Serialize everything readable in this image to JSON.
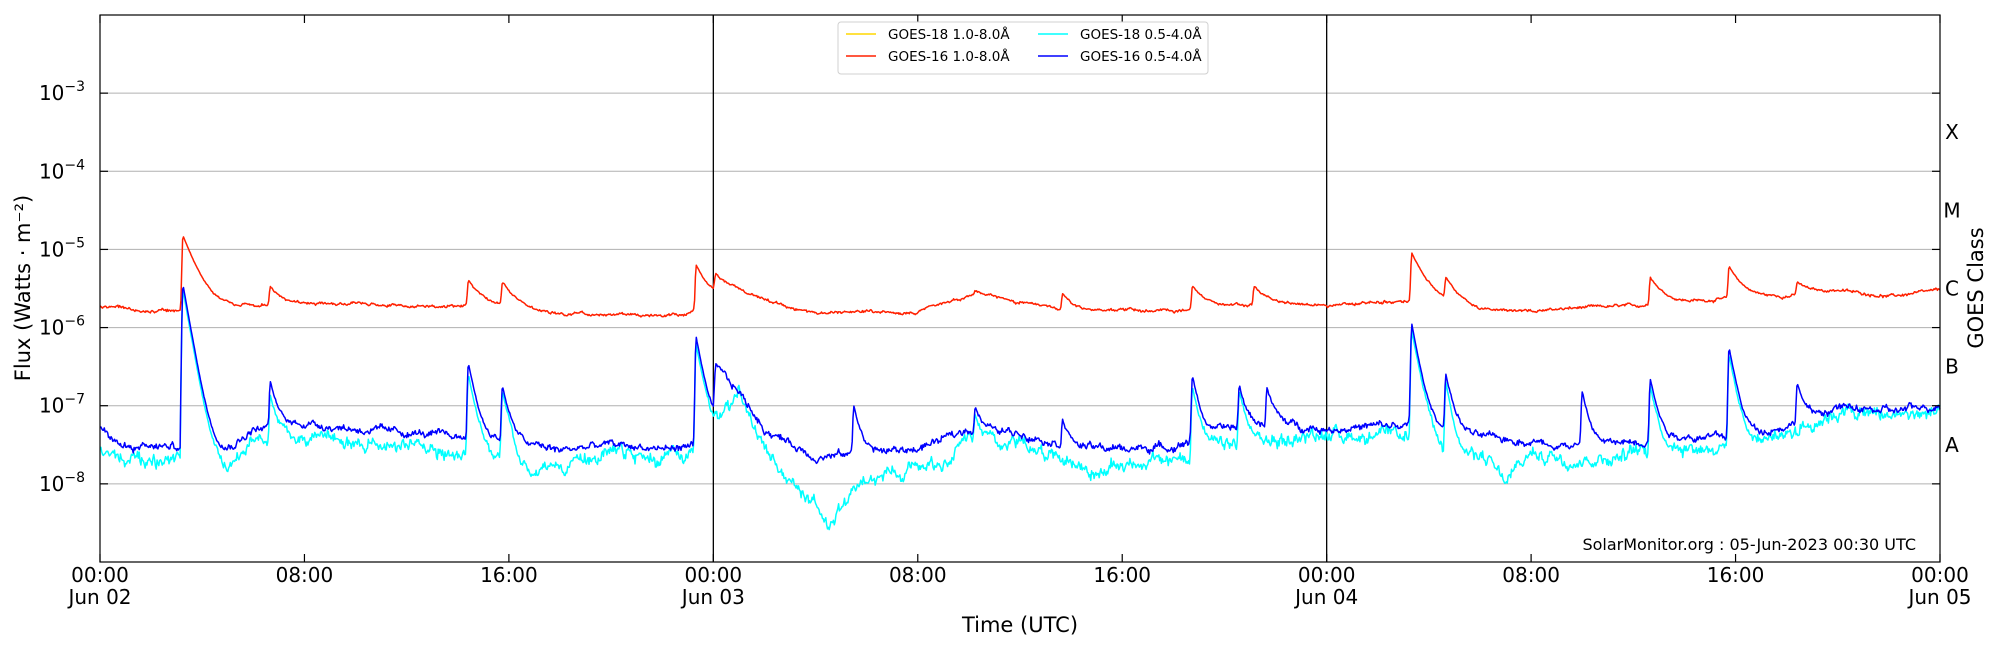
{
  "chart_data": {
    "type": "line",
    "title": "",
    "xlabel": "Time (UTC)",
    "ylabel": "Flux (Watts · m⁻²)",
    "y2label": "GOES Class",
    "yscale": "log",
    "ylim": [
      1e-09,
      0.01
    ],
    "xlim": [
      "2023-06-02T00:00",
      "2023-06-05T00:00"
    ],
    "x_ticks": [
      {
        "at": "2023-06-02T00:00",
        "line1": "00:00",
        "line2": "Jun 02"
      },
      {
        "at": "2023-06-02T08:00",
        "line1": "08:00",
        "line2": ""
      },
      {
        "at": "2023-06-02T16:00",
        "line1": "16:00",
        "line2": ""
      },
      {
        "at": "2023-06-03T00:00",
        "line1": "00:00",
        "line2": "Jun 03"
      },
      {
        "at": "2023-06-03T08:00",
        "line1": "08:00",
        "line2": ""
      },
      {
        "at": "2023-06-03T16:00",
        "line1": "16:00",
        "line2": ""
      },
      {
        "at": "2023-06-04T00:00",
        "line1": "00:00",
        "line2": "Jun 04"
      },
      {
        "at": "2023-06-04T08:00",
        "line1": "08:00",
        "line2": ""
      },
      {
        "at": "2023-06-04T16:00",
        "line1": "16:00",
        "line2": ""
      },
      {
        "at": "2023-06-05T00:00",
        "line1": "00:00",
        "line2": "Jun 05"
      }
    ],
    "y_ticks": [
      {
        "value": 1e-08,
        "mantissa": "10",
        "exponent": "−8"
      },
      {
        "value": 1e-07,
        "mantissa": "10",
        "exponent": "−7"
      },
      {
        "value": 1e-06,
        "mantissa": "10",
        "exponent": "−6"
      },
      {
        "value": 1e-05,
        "mantissa": "10",
        "exponent": "−5"
      },
      {
        "value": 0.0001,
        "mantissa": "10",
        "exponent": "−4"
      },
      {
        "value": 0.001,
        "mantissa": "10",
        "exponent": "−3"
      }
    ],
    "class_labels": [
      {
        "label": "A",
        "low": 1e-08,
        "high": 1e-07
      },
      {
        "label": "B",
        "low": 1e-07,
        "high": 1e-06
      },
      {
        "label": "C",
        "low": 1e-06,
        "high": 1e-05
      },
      {
        "label": "M",
        "low": 1e-05,
        "high": 0.0001
      },
      {
        "label": "X",
        "low": 0.0001,
        "high": 0.001
      }
    ],
    "grid": "horizontal",
    "day_markers": [
      "2023-06-03T00:00",
      "2023-06-04T00:00"
    ],
    "legend": {
      "placement": "top-center",
      "columns": 2
    },
    "watermark": "SolarMonitor.org : 05-Jun-2023 00:30 UTC",
    "series": [
      {
        "name": "GOES-18 1.0-8.0Å",
        "color": "#ffd700",
        "values": []
      },
      {
        "name": "GOES-16 1.0-8.0Å",
        "color": "#ff2000",
        "baseline": [
          [
            "2023-06-02T00:00",
            1.9e-06
          ],
          [
            "2023-06-02T02:00",
            1.6e-06
          ],
          [
            "2023-06-02T03:45",
            1.7e-06
          ],
          [
            "2023-06-02T06:00",
            1.9e-06
          ],
          [
            "2023-06-02T08:00",
            2e-06
          ],
          [
            "2023-06-02T10:00",
            2e-06
          ],
          [
            "2023-06-02T12:00",
            1.9e-06
          ],
          [
            "2023-06-02T14:00",
            1.9e-06
          ],
          [
            "2023-06-02T16:00",
            1.8e-06
          ],
          [
            "2023-06-02T18:00",
            1.5e-06
          ],
          [
            "2023-06-02T20:00",
            1.5e-06
          ],
          [
            "2023-06-02T22:00",
            1.4e-06
          ],
          [
            "2023-06-02T23:00",
            1.5e-06
          ],
          [
            "2023-06-03T00:00",
            2e-06
          ],
          [
            "2023-06-03T00:05",
            4e-06
          ],
          [
            "2023-06-03T02:00",
            2.3e-06
          ],
          [
            "2023-06-03T04:00",
            1.5e-06
          ],
          [
            "2023-06-03T06:00",
            1.6e-06
          ],
          [
            "2023-06-03T08:00",
            1.6e-06
          ],
          [
            "2023-06-03T10:00",
            2.6e-06
          ],
          [
            "2023-06-03T12:00",
            2.1e-06
          ],
          [
            "2023-06-03T14:00",
            1.6e-06
          ],
          [
            "2023-06-03T16:00",
            1.7e-06
          ],
          [
            "2023-06-03T18:00",
            1.6e-06
          ],
          [
            "2023-06-03T20:00",
            1.9e-06
          ],
          [
            "2023-06-03T22:00",
            2e-06
          ],
          [
            "2023-06-04T00:00",
            1.9e-06
          ],
          [
            "2023-06-04T02:00",
            2.1e-06
          ],
          [
            "2023-06-04T04:00",
            2.2e-06
          ],
          [
            "2023-06-04T06:00",
            1.7e-06
          ],
          [
            "2023-06-04T08:00",
            1.6e-06
          ],
          [
            "2023-06-04T10:00",
            1.8e-06
          ],
          [
            "2023-06-04T12:00",
            1.9e-06
          ],
          [
            "2023-06-04T14:00",
            2.1e-06
          ],
          [
            "2023-06-04T16:00",
            2.4e-06
          ],
          [
            "2023-06-04T18:00",
            2.5e-06
          ],
          [
            "2023-06-04T20:00",
            3e-06
          ],
          [
            "2023-06-04T22:00",
            2.5e-06
          ],
          [
            "2023-06-05T00:00",
            3e-06
          ]
        ],
        "flares": [
          [
            "2023-06-02T03:15",
            1.5e-05
          ],
          [
            "2023-06-02T06:40",
            3.3e-06
          ],
          [
            "2023-06-02T14:25",
            4e-06
          ],
          [
            "2023-06-02T15:45",
            3.7e-06
          ],
          [
            "2023-06-02T23:20",
            6.3e-06
          ],
          [
            "2023-06-03T02:30",
            2e-06
          ],
          [
            "2023-06-03T10:15",
            3e-06
          ],
          [
            "2023-06-03T13:40",
            2.7e-06
          ],
          [
            "2023-06-03T18:45",
            3.5e-06
          ],
          [
            "2023-06-03T21:10",
            3.3e-06
          ],
          [
            "2023-06-04T03:20",
            9e-06
          ],
          [
            "2023-06-04T04:40",
            4e-06
          ],
          [
            "2023-06-04T12:40",
            4.5e-06
          ],
          [
            "2023-06-04T15:45",
            6e-06
          ],
          [
            "2023-06-04T18:25",
            3.8e-06
          ]
        ]
      },
      {
        "name": "GOES-18 0.5-4.0Å",
        "color": "#00ffff",
        "baseline": [
          [
            "2023-06-02T00:00",
            3e-08
          ],
          [
            "2023-06-02T01:00",
            2e-08
          ],
          [
            "2023-06-02T03:45",
            2e-08
          ],
          [
            "2023-06-02T05:00",
            1.5e-08
          ],
          [
            "2023-06-02T06:00",
            3.5e-08
          ],
          [
            "2023-06-02T08:00",
            4e-08
          ],
          [
            "2023-06-02T10:00",
            3.5e-08
          ],
          [
            "2023-06-02T12:00",
            3e-08
          ],
          [
            "2023-06-02T14:00",
            2.5e-08
          ],
          [
            "2023-06-02T16:00",
            2e-08
          ],
          [
            "2023-06-02T17:00",
            1.3e-08
          ],
          [
            "2023-06-02T18:00",
            1.8e-08
          ],
          [
            "2023-06-02T20:00",
            2.5e-08
          ],
          [
            "2023-06-02T22:00",
            2e-08
          ],
          [
            "2023-06-02T23:00",
            2.5e-08
          ],
          [
            "2023-06-03T00:00",
            4e-08
          ],
          [
            "2023-06-03T01:00",
            1.5e-07
          ],
          [
            "2023-06-03T02:00",
            2.5e-08
          ],
          [
            "2023-06-03T03:00",
            1e-08
          ],
          [
            "2023-06-03T04:00",
            6e-09
          ],
          [
            "2023-06-03T04:30",
            3e-09
          ],
          [
            "2023-06-03T05:30",
            8e-09
          ],
          [
            "2023-06-03T07:00",
            1.5e-08
          ],
          [
            "2023-06-03T09:00",
            2e-08
          ],
          [
            "2023-06-03T10:00",
            4e-08
          ],
          [
            "2023-06-03T12:00",
            3.5e-08
          ],
          [
            "2023-06-03T14:00",
            2e-08
          ],
          [
            "2023-06-03T15:00",
            1.3e-08
          ],
          [
            "2023-06-03T16:00",
            1.8e-08
          ],
          [
            "2023-06-03T18:00",
            2e-08
          ],
          [
            "2023-06-03T20:00",
            3e-08
          ],
          [
            "2023-06-03T22:00",
            3.5e-08
          ],
          [
            "2023-06-04T00:00",
            4.5e-08
          ],
          [
            "2023-06-04T02:00",
            4e-08
          ],
          [
            "2023-06-04T04:00",
            4e-08
          ],
          [
            "2023-06-04T05:00",
            1.5e-08
          ],
          [
            "2023-06-04T06:00",
            2.5e-08
          ],
          [
            "2023-06-04T07:00",
            1e-08
          ],
          [
            "2023-06-04T08:00",
            2.5e-08
          ],
          [
            "2023-06-04T10:00",
            2e-08
          ],
          [
            "2023-06-04T12:00",
            2.5e-08
          ],
          [
            "2023-06-04T14:00",
            3e-08
          ],
          [
            "2023-06-04T16:00",
            3e-08
          ],
          [
            "2023-06-04T18:00",
            4.5e-08
          ],
          [
            "2023-06-04T20:00",
            8.5e-08
          ],
          [
            "2023-06-04T22:00",
            7.5e-08
          ],
          [
            "2023-06-05T00:00",
            8e-08
          ]
        ],
        "flares": [
          [
            "2023-06-02T03:15",
            3e-06
          ],
          [
            "2023-06-02T06:40",
            1.4e-07
          ],
          [
            "2023-06-02T14:25",
            2.5e-07
          ],
          [
            "2023-06-02T15:45",
            1.5e-07
          ],
          [
            "2023-06-02T23:20",
            6e-07
          ],
          [
            "2023-06-03T10:15",
            8e-08
          ],
          [
            "2023-06-03T18:45",
            1.8e-07
          ],
          [
            "2023-06-03T20:35",
            1.5e-07
          ],
          [
            "2023-06-04T03:20",
            9e-07
          ],
          [
            "2023-06-04T04:40",
            2e-07
          ],
          [
            "2023-06-04T12:40",
            1.8e-07
          ],
          [
            "2023-06-04T15:45",
            4.5e-07
          ]
        ]
      },
      {
        "name": "GOES-16 0.5-4.0Å",
        "color": "#0000ff",
        "baseline": [
          [
            "2023-06-02T00:00",
            5e-08
          ],
          [
            "2023-06-02T01:00",
            3e-08
          ],
          [
            "2023-06-02T03:45",
            3e-08
          ],
          [
            "2023-06-02T05:00",
            2.8e-08
          ],
          [
            "2023-06-02T06:00",
            5e-08
          ],
          [
            "2023-06-02T08:00",
            6e-08
          ],
          [
            "2023-06-02T10:00",
            5e-08
          ],
          [
            "2023-06-02T12:00",
            4.5e-08
          ],
          [
            "2023-06-02T14:00",
            4e-08
          ],
          [
            "2023-06-02T16:00",
            3.5e-08
          ],
          [
            "2023-06-02T18:00",
            2.7e-08
          ],
          [
            "2023-06-02T20:00",
            3.2e-08
          ],
          [
            "2023-06-02T22:00",
            2.8e-08
          ],
          [
            "2023-06-02T23:00",
            3e-08
          ],
          [
            "2023-06-03T00:00",
            5e-08
          ],
          [
            "2023-06-03T00:05",
            3e-07
          ],
          [
            "2023-06-03T01:00",
            1.5e-07
          ],
          [
            "2023-06-03T02:00",
            5e-08
          ],
          [
            "2023-06-03T04:00",
            2.2e-08
          ],
          [
            "2023-06-03T06:00",
            2.5e-08
          ],
          [
            "2023-06-03T08:00",
            2.8e-08
          ],
          [
            "2023-06-03T10:00",
            5e-08
          ],
          [
            "2023-06-03T12:00",
            4.5e-08
          ],
          [
            "2023-06-03T14:00",
            3e-08
          ],
          [
            "2023-06-03T16:00",
            2.8e-08
          ],
          [
            "2023-06-03T18:00",
            3e-08
          ],
          [
            "2023-06-03T20:00",
            5e-08
          ],
          [
            "2023-06-03T22:00",
            6e-08
          ],
          [
            "2023-06-04T00:00",
            5e-08
          ],
          [
            "2023-06-04T02:00",
            5.5e-08
          ],
          [
            "2023-06-04T04:00",
            5.5e-08
          ],
          [
            "2023-06-04T06:00",
            4e-08
          ],
          [
            "2023-06-04T08:00",
            3.5e-08
          ],
          [
            "2023-06-04T10:00",
            3e-08
          ],
          [
            "2023-06-04T12:00",
            3.5e-08
          ],
          [
            "2023-06-04T14:00",
            4e-08
          ],
          [
            "2023-06-04T16:00",
            4e-08
          ],
          [
            "2023-06-04T18:00",
            5.5e-08
          ],
          [
            "2023-06-04T20:00",
            9.5e-08
          ],
          [
            "2023-06-04T22:00",
            8.5e-08
          ],
          [
            "2023-06-05T00:00",
            1e-07
          ]
        ],
        "flares": [
          [
            "2023-06-02T03:15",
            3.5e-06
          ],
          [
            "2023-06-02T06:40",
            2e-07
          ],
          [
            "2023-06-02T14:25",
            3.5e-07
          ],
          [
            "2023-06-02T15:45",
            1.8e-07
          ],
          [
            "2023-06-02T23:20",
            7.5e-07
          ],
          [
            "2023-06-03T05:30",
            1e-07
          ],
          [
            "2023-06-03T10:15",
            1e-07
          ],
          [
            "2023-06-03T13:40",
            7e-08
          ],
          [
            "2023-06-03T18:45",
            2.4e-07
          ],
          [
            "2023-06-03T20:35",
            1.8e-07
          ],
          [
            "2023-06-03T21:40",
            1.7e-07
          ],
          [
            "2023-06-04T03:20",
            1.1e-06
          ],
          [
            "2023-06-04T04:40",
            2.5e-07
          ],
          [
            "2023-06-04T10:00",
            1.5e-07
          ],
          [
            "2023-06-04T12:40",
            2.2e-07
          ],
          [
            "2023-06-04T15:45",
            5.5e-07
          ],
          [
            "2023-06-04T18:25",
            2e-07
          ]
        ]
      }
    ]
  }
}
